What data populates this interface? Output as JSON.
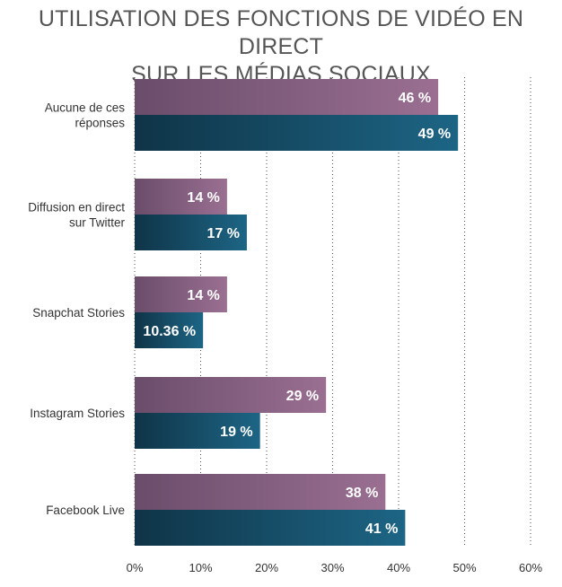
{
  "chart_data": {
    "type": "bar",
    "orientation": "horizontal",
    "title_lines": [
      "UTILISATION DES FONCTIONS DE VIDÉO EN DIRECT",
      "SUR LES MÉDIAS SOCIAUX"
    ],
    "categories": [
      [
        "Aucune de ces",
        "réponses"
      ],
      [
        "Diffusion en direct",
        "sur Twitter"
      ],
      [
        "Snapchat Stories"
      ],
      [
        "Instagram Stories"
      ],
      [
        "Facebook Live"
      ]
    ],
    "series": [
      {
        "values": [
          46,
          14,
          14,
          29,
          38
        ],
        "labels": [
          "46 %",
          "14 %",
          "14 %",
          "29 %",
          "38 %"
        ],
        "color_start": "#6a4d6a",
        "color_end": "#9a6f92"
      },
      {
        "values": [
          49,
          17,
          10.36,
          19,
          41
        ],
        "labels": [
          "49 %",
          "17 %",
          "10.36 %",
          "19 %",
          "41 %"
        ],
        "color_start": "#0f3447",
        "color_end": "#1d6585"
      }
    ],
    "xlim": [
      0,
      60
    ],
    "xticks": [
      0,
      10,
      20,
      30,
      40,
      50,
      60
    ],
    "xtick_labels": [
      "0%",
      "10%",
      "20%",
      "30%",
      "40%",
      "50%",
      "60%"
    ],
    "grid": "vertical-dotted",
    "legend": "none"
  }
}
